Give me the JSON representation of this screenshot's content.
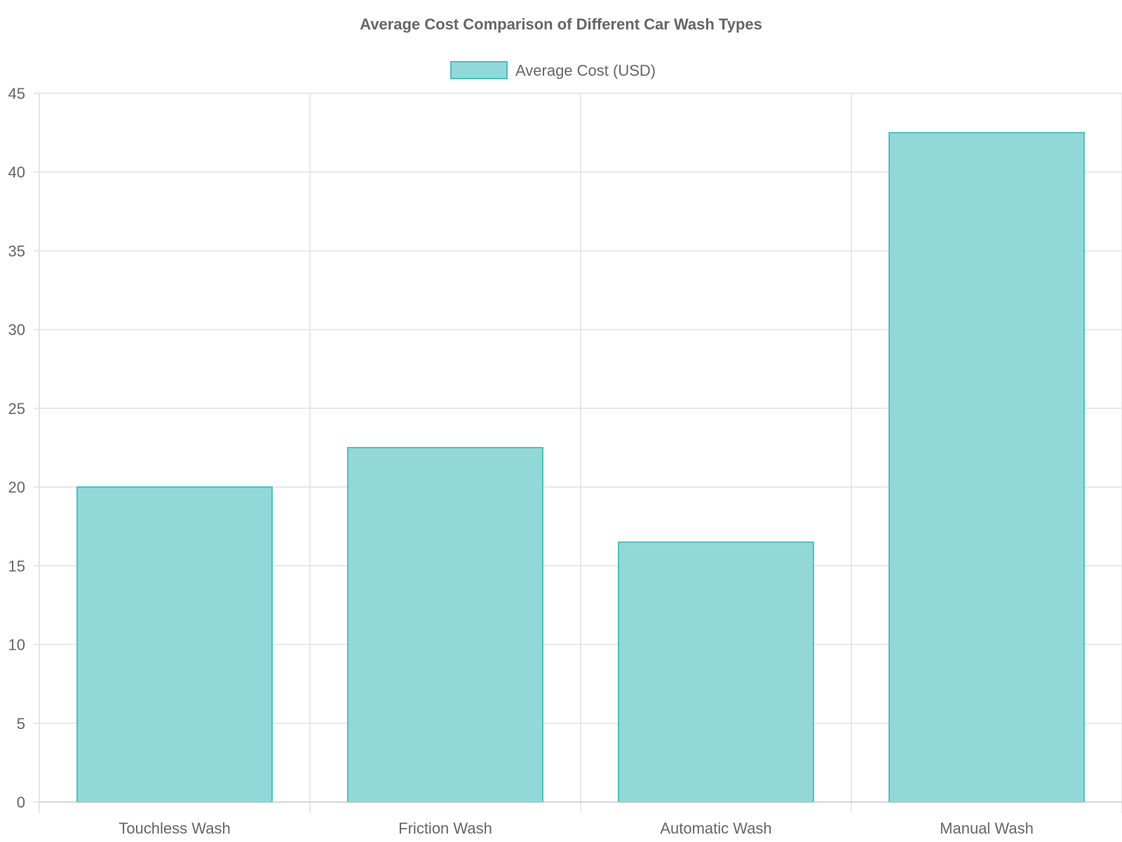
{
  "chart_data": {
    "type": "bar",
    "title": "Average Cost Comparison of Different Car Wash Types",
    "categories": [
      "Touchless Wash",
      "Friction Wash",
      "Automatic Wash",
      "Manual Wash"
    ],
    "series": [
      {
        "name": "Average Cost (USD)",
        "values": [
          20,
          22.5,
          16.5,
          42.5
        ],
        "fill_color": "#93d8d8",
        "border_color": "#4bbfbf"
      }
    ],
    "xlabel": "",
    "ylabel": "",
    "ylim": [
      0,
      45
    ],
    "yticks": [
      "0",
      "5",
      "10",
      "15",
      "20",
      "25",
      "30",
      "35",
      "40",
      "45"
    ],
    "grid": true,
    "legend_position": "top-center"
  }
}
